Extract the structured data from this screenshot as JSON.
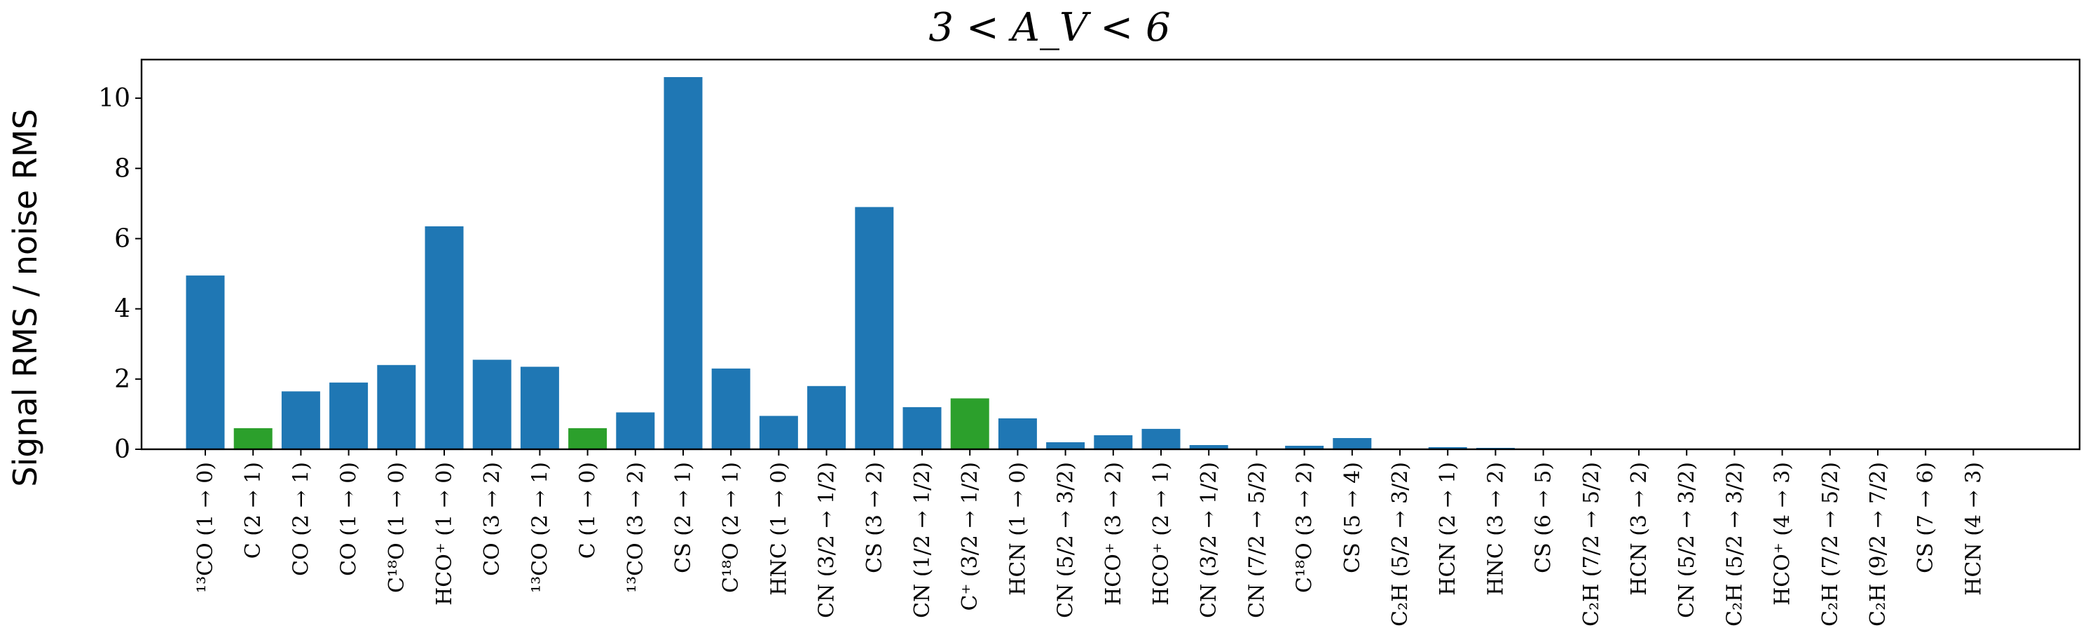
{
  "chart_data": {
    "type": "bar",
    "title": "3 < A_V < 6",
    "xlabel": "",
    "ylabel": "Signal RMS / noise RMS",
    "ylim": [
      0,
      11.1
    ],
    "yticks": [
      0,
      2,
      4,
      6,
      8,
      10
    ],
    "grid": false,
    "categories": [
      "¹³CO (1 → 0)",
      "C (2 → 1)",
      "CO (2 → 1)",
      "CO (1 → 0)",
      "C¹⁸O (1 → 0)",
      "HCO⁺ (1 → 0)",
      "CO (3 → 2)",
      "¹³CO (2 → 1)",
      "C (1 → 0)",
      "¹³CO (3 → 2)",
      "CS (2 → 1)",
      "C¹⁸O (2 → 1)",
      "HNC (1 → 0)",
      "CN (3/2 → 1/2)",
      "CS (3 → 2)",
      "CN (1/2 → 1/2)",
      "C⁺ (3/2 → 1/2)",
      "HCN (1 → 0)",
      "CN (5/2 → 3/2)",
      "HCO⁺ (3 → 2)",
      "HCO⁺ (2 → 1)",
      "CN (3/2 → 1/2)",
      "CN (7/2 → 5/2)",
      "C¹⁸O (3 → 2)",
      "CS (5 → 4)",
      "C₂H (5/2 → 3/2)",
      "HCN (2 → 1)",
      "HNC (3 → 2)",
      "CS (6 → 5)",
      "C₂H (7/2 → 5/2)",
      "HCN (3 → 2)",
      "CN (5/2 → 3/2)",
      "C₂H (5/2 → 3/2)",
      "HCO⁺ (4 → 3)",
      "C₂H (7/2 → 5/2)",
      "C₂H (9/2 → 7/2)",
      "CS (7 → 6)",
      "HCN (4 → 3)"
    ],
    "values": [
      4.95,
      0.6,
      1.65,
      1.9,
      2.4,
      6.35,
      2.55,
      2.35,
      0.6,
      1.05,
      10.6,
      2.3,
      0.95,
      1.8,
      6.9,
      1.2,
      1.45,
      0.88,
      0.2,
      0.4,
      0.58,
      0.12,
      0.01,
      0.1,
      0.32,
      0.02,
      0.06,
      0.04,
      0.02,
      0.02,
      0.02,
      0.005,
      0.005,
      0.005,
      0.005,
      0.005,
      0.005,
      0.005
    ],
    "bar_colors": [
      "#1f77b4",
      "#2ca02c",
      "#1f77b4",
      "#1f77b4",
      "#1f77b4",
      "#1f77b4",
      "#1f77b4",
      "#1f77b4",
      "#2ca02c",
      "#1f77b4",
      "#1f77b4",
      "#1f77b4",
      "#1f77b4",
      "#1f77b4",
      "#1f77b4",
      "#1f77b4",
      "#2ca02c",
      "#1f77b4",
      "#1f77b4",
      "#1f77b4",
      "#1f77b4",
      "#1f77b4",
      "#1f77b4",
      "#1f77b4",
      "#1f77b4",
      "#1f77b4",
      "#1f77b4",
      "#1f77b4",
      "#1f77b4",
      "#1f77b4",
      "#1f77b4",
      "#1f77b4",
      "#1f77b4",
      "#1f77b4",
      "#1f77b4",
      "#1f77b4",
      "#1f77b4",
      "#1f77b4"
    ]
  }
}
